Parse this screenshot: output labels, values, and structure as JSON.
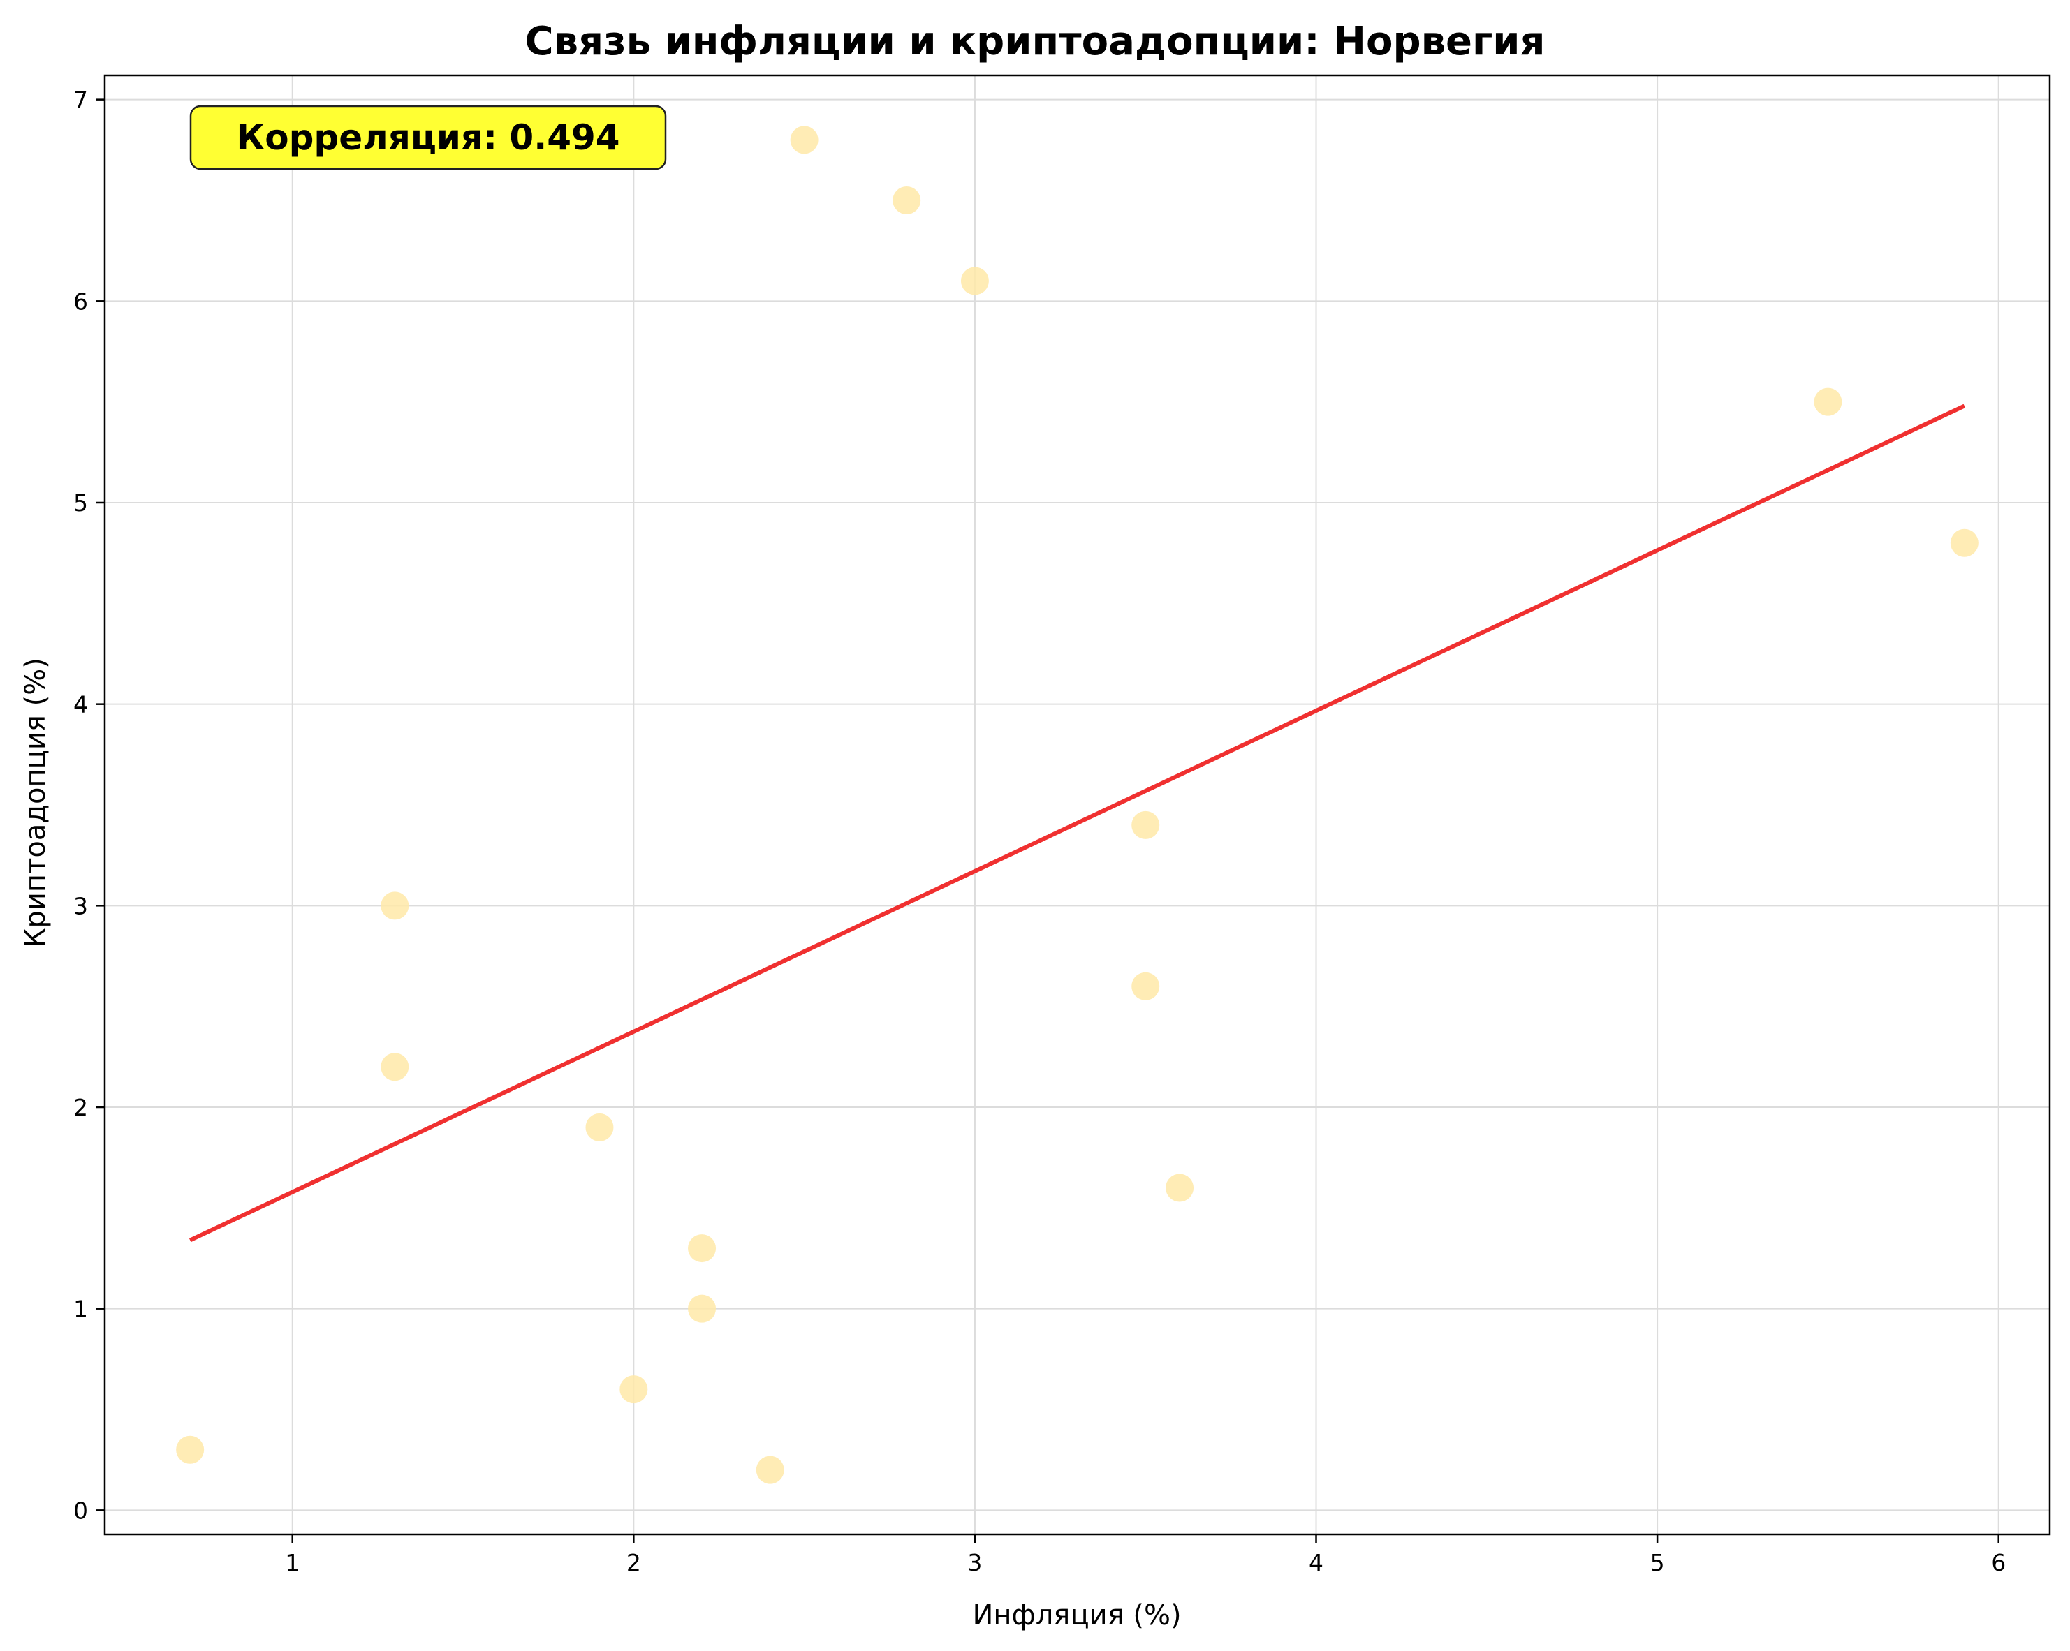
{
  "chart_data": {
    "type": "scatter",
    "title": "Связь инфляции и криптоадопции: Норвегия",
    "xlabel": "Инфляция (%)",
    "ylabel": "Криптоадопция (%)",
    "xlim": [
      0.45,
      6.15
    ],
    "ylim": [
      -0.12,
      7.12
    ],
    "xticks": [
      1,
      2,
      3,
      4,
      5,
      6
    ],
    "yticks": [
      0,
      1,
      2,
      3,
      4,
      5,
      6,
      7
    ],
    "grid": true,
    "point_color": "#ffe9a8",
    "points": [
      {
        "x": 0.7,
        "y": 0.3
      },
      {
        "x": 1.3,
        "y": 3.0
      },
      {
        "x": 1.3,
        "y": 2.2
      },
      {
        "x": 1.9,
        "y": 1.9
      },
      {
        "x": 2.0,
        "y": 0.6
      },
      {
        "x": 2.2,
        "y": 1.3
      },
      {
        "x": 2.2,
        "y": 1.0
      },
      {
        "x": 2.4,
        "y": 0.2
      },
      {
        "x": 2.5,
        "y": 6.8
      },
      {
        "x": 2.8,
        "y": 6.5
      },
      {
        "x": 3.0,
        "y": 6.1
      },
      {
        "x": 3.5,
        "y": 3.4
      },
      {
        "x": 3.5,
        "y": 2.6
      },
      {
        "x": 3.6,
        "y": 1.6
      },
      {
        "x": 5.5,
        "y": 5.5
      },
      {
        "x": 5.9,
        "y": 4.8
      }
    ],
    "trend_line": {
      "color": "#f03030",
      "start": {
        "x": 0.7,
        "y": 1.34
      },
      "end": {
        "x": 5.9,
        "y": 5.48
      }
    },
    "annotation": {
      "text": "Корреляция: 0.494",
      "background": "#ffff33",
      "placement": "top-left"
    }
  }
}
